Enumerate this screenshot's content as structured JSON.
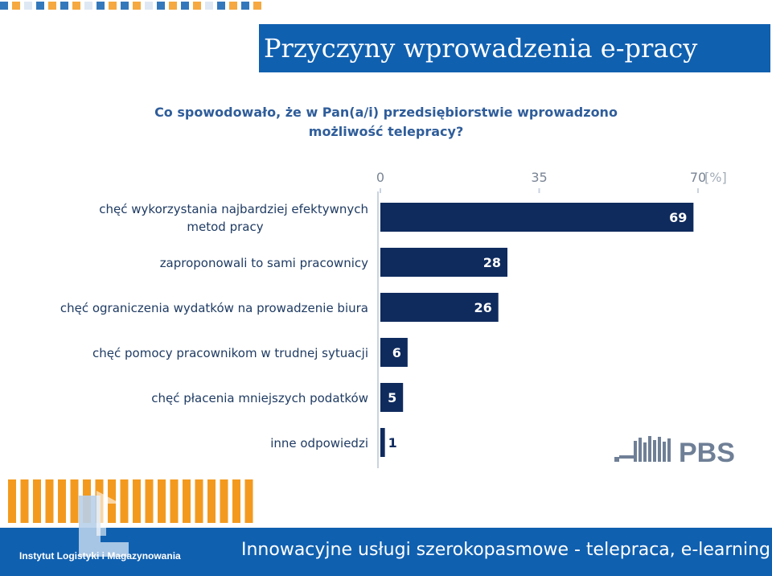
{
  "slide": {
    "title": "Przyczyny wprowadzenia e-pracy",
    "footer": "Innowacyjne usługi szerokopasmowe  - telepraca, e-learning",
    "institute_label": "Instytut Logistyki i Magazynowania",
    "logo_text": "PBS"
  },
  "colors": {
    "bar": "#0f2b5e",
    "title_bg": "#1060b0",
    "question_text": "#2f5d9a",
    "footer_bg": "#1060b0",
    "accent": "#f39a1e"
  },
  "chart_data": {
    "type": "bar",
    "orientation": "horizontal",
    "title": "Co spowodowało, że w Pan(a/i) przedsiębiorstwie wprowadzono możliwość telepracy?",
    "title_lines": [
      "Co spowodowało, że w Pan(a/i) przedsiębiorstwie wprowadzono",
      "możliwość telepracy?"
    ],
    "categories": [
      [
        "chęć wykorzystania najbardziej efektywnych",
        "metod pracy"
      ],
      [
        "zaproponowali to sami pracownicy"
      ],
      [
        "chęć ograniczenia wydatków na prowadzenie biura"
      ],
      [
        "chęć pomocy pracownikom w trudnej sytuacji"
      ],
      [
        "chęć płacenia mniejszych podatków"
      ],
      [
        "inne odpowiedzi"
      ]
    ],
    "values": [
      69,
      28,
      26,
      6,
      5,
      1
    ],
    "xlim": [
      0,
      70
    ],
    "ticks": [
      0,
      35,
      70
    ],
    "unit": "[%]",
    "grid": false,
    "legend": "none"
  }
}
